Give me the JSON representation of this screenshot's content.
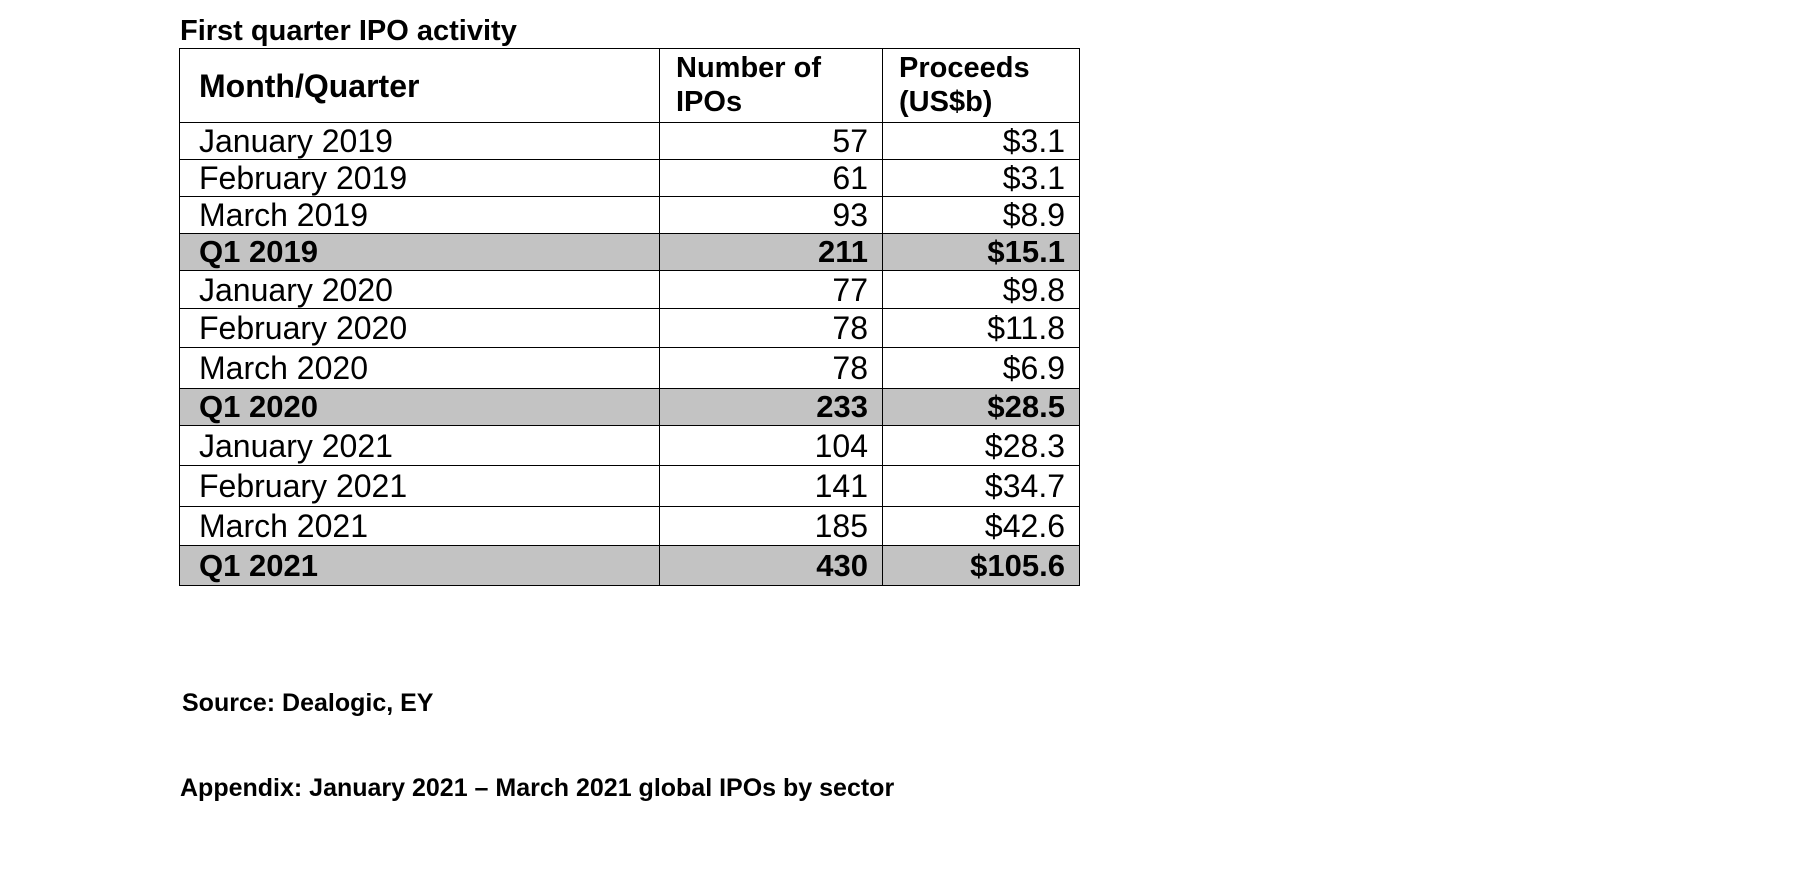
{
  "title": "First quarter IPO activity",
  "table": {
    "headers": {
      "month": "Month/Quarter",
      "ipos_line1": "Number of",
      "ipos_line2": "IPOs",
      "proceeds_line1": "Proceeds",
      "proceeds_line2": "(US$b)"
    },
    "rows": [
      {
        "label": "January 2019",
        "ipos": "57",
        "proceeds": "$3.1",
        "total": false
      },
      {
        "label": "February 2019",
        "ipos": "61",
        "proceeds": "$3.1",
        "total": false
      },
      {
        "label": "March 2019",
        "ipos": "93",
        "proceeds": "$8.9",
        "total": false
      },
      {
        "label": "Q1 2019",
        "ipos": "211",
        "proceeds": "$15.1",
        "total": true
      },
      {
        "label": "January 2020",
        "ipos": "77",
        "proceeds": "$9.8",
        "total": false
      },
      {
        "label": "February 2020",
        "ipos": "78",
        "proceeds": "$11.8",
        "total": false
      },
      {
        "label": "March 2020",
        "ipos": "78",
        "proceeds": "$6.9",
        "total": false
      },
      {
        "label": "Q1 2020",
        "ipos": "233",
        "proceeds": "$28.5",
        "total": true
      },
      {
        "label": "January 2021",
        "ipos": "104",
        "proceeds": "$28.3",
        "total": false
      },
      {
        "label": "February 2021",
        "ipos": "141",
        "proceeds": "$34.7",
        "total": false
      },
      {
        "label": "March 2021",
        "ipos": "185",
        "proceeds": "$42.6",
        "total": false
      },
      {
        "label": "Q1 2021",
        "ipos": "430",
        "proceeds": "$105.6",
        "total": true
      }
    ]
  },
  "source": "Source: Dealogic, EY",
  "appendix": "Appendix: January 2021 – March 2021 global IPOs by sector",
  "colors": {
    "total_row_bg": "#c3c3c3",
    "border": "#000000"
  }
}
